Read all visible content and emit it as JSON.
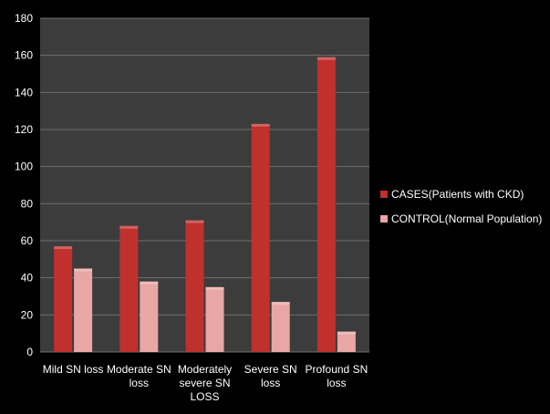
{
  "chart_data": {
    "type": "bar",
    "categories": [
      [
        "Mild SN loss"
      ],
      [
        "Moderate SN",
        "loss"
      ],
      [
        "Moderately",
        "severe SN",
        "LOSS"
      ],
      [
        "Severe SN",
        "loss"
      ],
      [
        "Profound SN",
        "loss"
      ]
    ],
    "series": [
      {
        "name": "CASES(Patients with CKD)",
        "values": [
          57,
          68,
          71,
          123,
          159
        ],
        "color": "#c0302d"
      },
      {
        "name": "CONTROL(Normal Population)",
        "values": [
          45,
          38,
          35,
          27,
          11
        ],
        "color": "#e8a7a4"
      }
    ],
    "ylim": [
      0,
      180
    ],
    "yticks": [
      0,
      20,
      40,
      60,
      80,
      100,
      120,
      140,
      160,
      180
    ],
    "grid": true,
    "legend_position": "right",
    "colors": {
      "page": "#000000",
      "plot_area": "#3c3c3c",
      "grid": "#6e6e6e",
      "text": "#ffffff"
    }
  }
}
